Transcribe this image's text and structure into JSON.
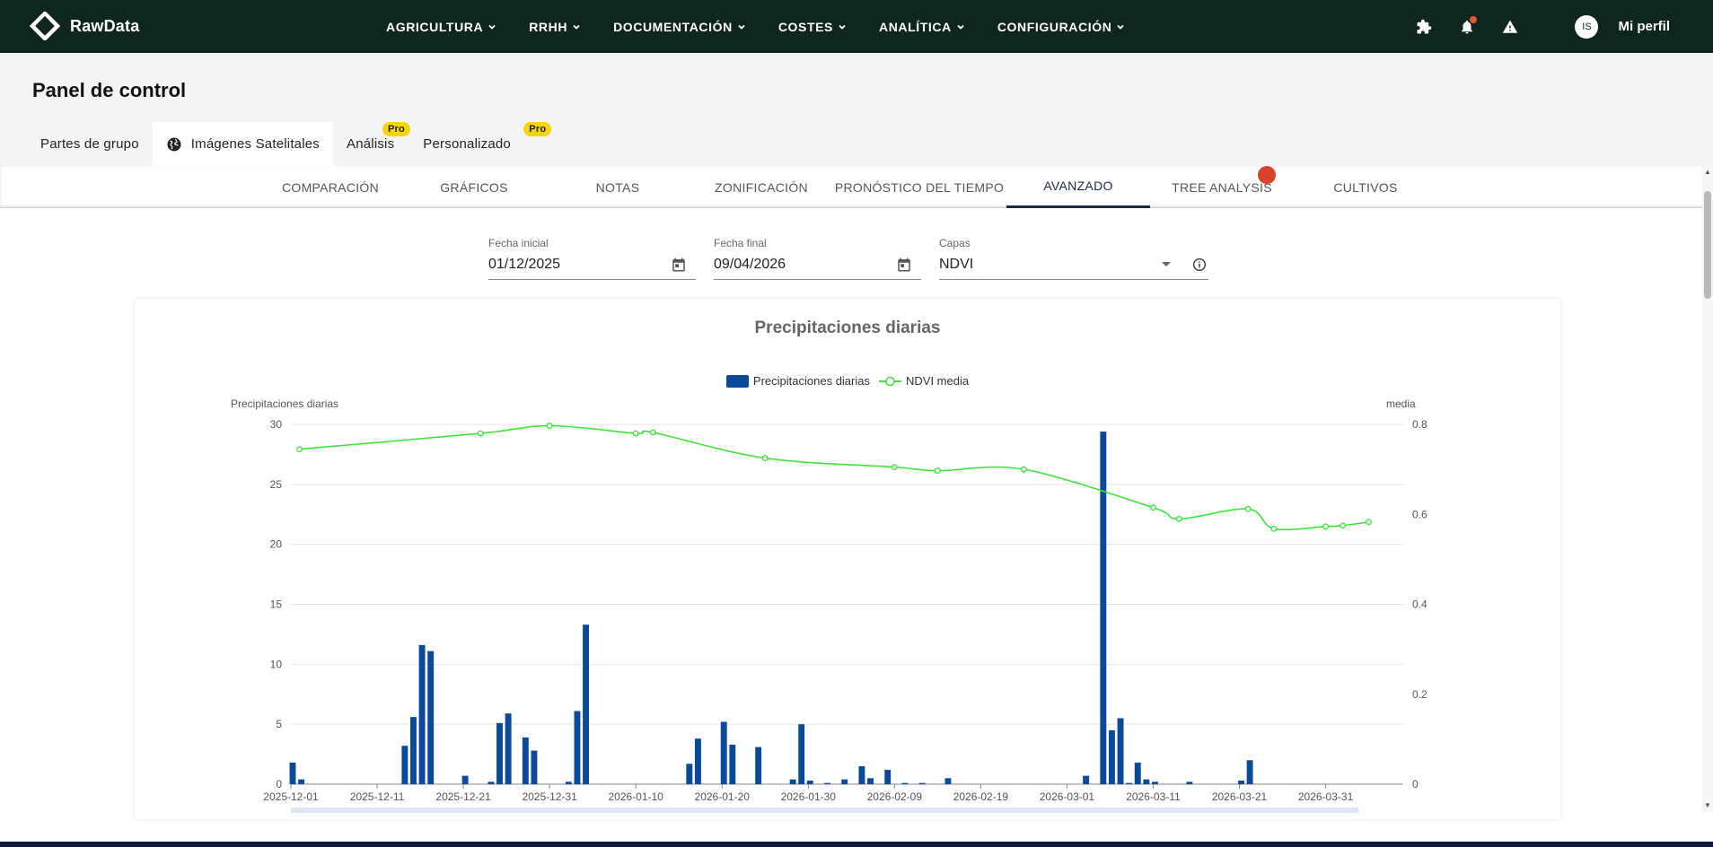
{
  "app": {
    "name": "RawData"
  },
  "nav": {
    "items": [
      {
        "label": "AGRICULTURA"
      },
      {
        "label": "RRHH"
      },
      {
        "label": "DOCUMENTACIÓN"
      },
      {
        "label": "COSTES"
      },
      {
        "label": "ANALÍTICA"
      },
      {
        "label": "CONFIGURACIÓN"
      }
    ],
    "icons": [
      "puzzle-icon",
      "bell-icon",
      "warning-icon"
    ],
    "avatar_initials": "IS",
    "profile_label": "Mi perfil"
  },
  "page": {
    "title": "Panel de control",
    "tabs": [
      {
        "label": "Partes de grupo"
      },
      {
        "label": "Imágenes Satelitales",
        "active": true
      },
      {
        "label": "Análisis",
        "badge": "Pro"
      },
      {
        "label": "Personalizado",
        "badge": "Pro"
      }
    ]
  },
  "subtabs": [
    {
      "label": "COMPARACIÓN"
    },
    {
      "label": "GRÁFICOS"
    },
    {
      "label": "NOTAS"
    },
    {
      "label": "ZONIFICACIÓN"
    },
    {
      "label": "PRONÓSTICO DEL TIEMPO"
    },
    {
      "label": "AVANZADO",
      "active": true
    },
    {
      "label": "TREE ANALYSIS"
    },
    {
      "label": "CULTIVOS"
    }
  ],
  "filters": {
    "start_date": {
      "label": "Fecha inicial",
      "value": "01/12/2025"
    },
    "end_date": {
      "label": "Fecha final",
      "value": "09/04/2026"
    },
    "layer": {
      "label": "Capas",
      "value": "NDVI"
    }
  },
  "colors": {
    "bar": "#0b4a9a",
    "line": "#3ee43a",
    "topbar": "#0f2520",
    "badge": "#f5d60a"
  },
  "chart_data": {
    "type": "bar",
    "title": "Precipitaciones diarias",
    "ylabel_left": "Precipitaciones diarias",
    "ylabel_right": "media",
    "ylim_left": [
      0,
      30
    ],
    "ylim_right": [
      0,
      0.8
    ],
    "yticks_left": [
      0,
      5,
      10,
      15,
      20,
      25,
      30
    ],
    "yticks_right": [
      0,
      0.2,
      0.4,
      0.6,
      0.8
    ],
    "x_start": "2025-12-01",
    "x_end": "2026-04-09",
    "xticks": [
      "2025-12-01",
      "2025-12-11",
      "2025-12-21",
      "2025-12-31",
      "2026-01-10",
      "2026-01-20",
      "2026-01-30",
      "2026-02-09",
      "2026-02-19",
      "2026-03-01",
      "2026-03-11",
      "2026-03-21",
      "2026-03-31"
    ],
    "legend_position": "top-center",
    "grid": true,
    "series": [
      {
        "name": "Precipitaciones diarias",
        "type": "bar",
        "axis": "left",
        "points": [
          [
            "2025-12-01",
            1.8
          ],
          [
            "2025-12-02",
            0.4
          ],
          [
            "2025-12-14",
            3.2
          ],
          [
            "2025-12-15",
            5.6
          ],
          [
            "2025-12-16",
            11.6
          ],
          [
            "2025-12-17",
            11.1
          ],
          [
            "2025-12-21",
            0.7
          ],
          [
            "2025-12-24",
            0.2
          ],
          [
            "2025-12-25",
            5.1
          ],
          [
            "2025-12-26",
            5.9
          ],
          [
            "2025-12-28",
            3.9
          ],
          [
            "2025-12-29",
            2.8
          ],
          [
            "2026-01-02",
            0.2
          ],
          [
            "2026-01-03",
            6.1
          ],
          [
            "2026-01-04",
            13.3
          ],
          [
            "2026-01-16",
            1.7
          ],
          [
            "2026-01-17",
            3.8
          ],
          [
            "2026-01-20",
            5.2
          ],
          [
            "2026-01-21",
            3.3
          ],
          [
            "2026-01-24",
            3.1
          ],
          [
            "2026-01-28",
            0.4
          ],
          [
            "2026-01-29",
            5.0
          ],
          [
            "2026-01-30",
            0.3
          ],
          [
            "2026-02-01",
            0.1
          ],
          [
            "2026-02-03",
            0.4
          ],
          [
            "2026-02-05",
            1.5
          ],
          [
            "2026-02-06",
            0.5
          ],
          [
            "2026-02-08",
            1.2
          ],
          [
            "2026-02-10",
            0.1
          ],
          [
            "2026-02-12",
            0.1
          ],
          [
            "2026-02-15",
            0.5
          ],
          [
            "2026-03-03",
            0.7
          ],
          [
            "2026-03-05",
            29.4
          ],
          [
            "2026-03-06",
            4.5
          ],
          [
            "2026-03-07",
            5.5
          ],
          [
            "2026-03-08",
            0.1
          ],
          [
            "2026-03-09",
            1.8
          ],
          [
            "2026-03-10",
            0.4
          ],
          [
            "2026-03-11",
            0.2
          ],
          [
            "2026-03-15",
            0.2
          ],
          [
            "2026-03-21",
            0.3
          ],
          [
            "2026-03-22",
            2.0
          ]
        ]
      },
      {
        "name": "NDVI media",
        "type": "line",
        "axis": "right",
        "points": [
          [
            "2025-12-02",
            0.745
          ],
          [
            "2025-12-23",
            0.78
          ],
          [
            "2025-12-31",
            0.797
          ],
          [
            "2026-01-10",
            0.78
          ],
          [
            "2026-01-12",
            0.782
          ],
          [
            "2026-01-25",
            0.725
          ],
          [
            "2026-02-09",
            0.705
          ],
          [
            "2026-02-14",
            0.697
          ],
          [
            "2026-02-24",
            0.7
          ],
          [
            "2026-03-11",
            0.615
          ],
          [
            "2026-03-14",
            0.59
          ],
          [
            "2026-03-22",
            0.612
          ],
          [
            "2026-03-25",
            0.568
          ],
          [
            "2026-03-31",
            0.573
          ],
          [
            "2026-04-02",
            0.575
          ],
          [
            "2026-04-05",
            0.583
          ]
        ]
      }
    ]
  }
}
